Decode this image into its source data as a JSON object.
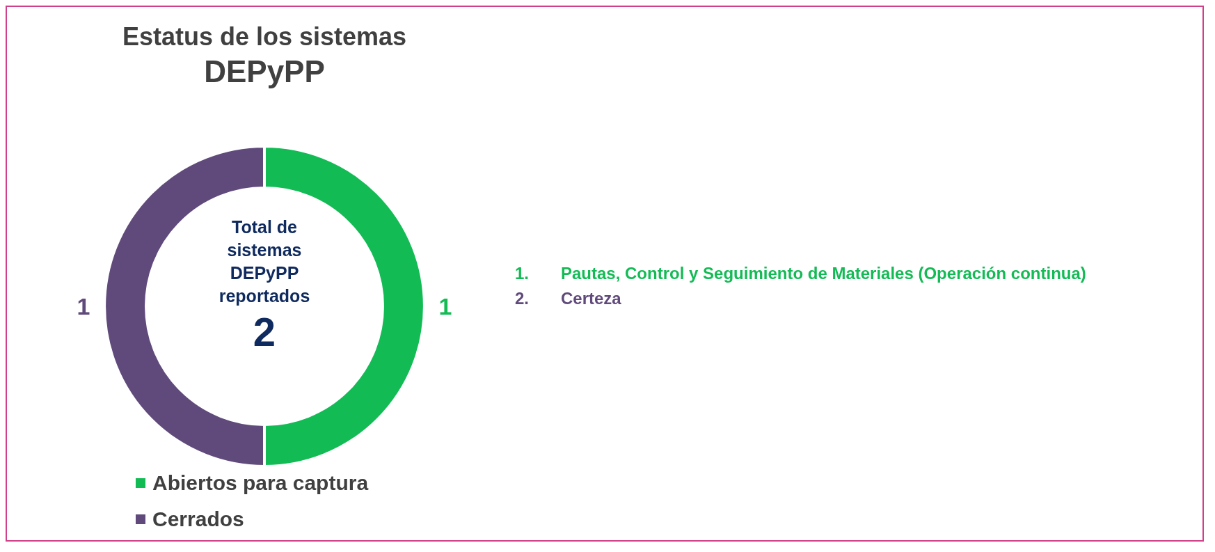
{
  "chart_data": {
    "type": "donut",
    "title": "Estatus de los sistemas\nDEPyPP",
    "categories": [
      "Abiertos para captura",
      "Cerrados"
    ],
    "values": [
      1,
      1
    ],
    "colors": [
      "#13bb55",
      "#604a7b"
    ],
    "data_labels": true,
    "legend": "bottom left",
    "annotations": [
      "Total de sistemas DEPyPP reportados",
      "2",
      "1.\tPautas, Control y Seguimiento de Materiales (Operación continua)",
      "2.\tCerteza"
    ]
  }
}
